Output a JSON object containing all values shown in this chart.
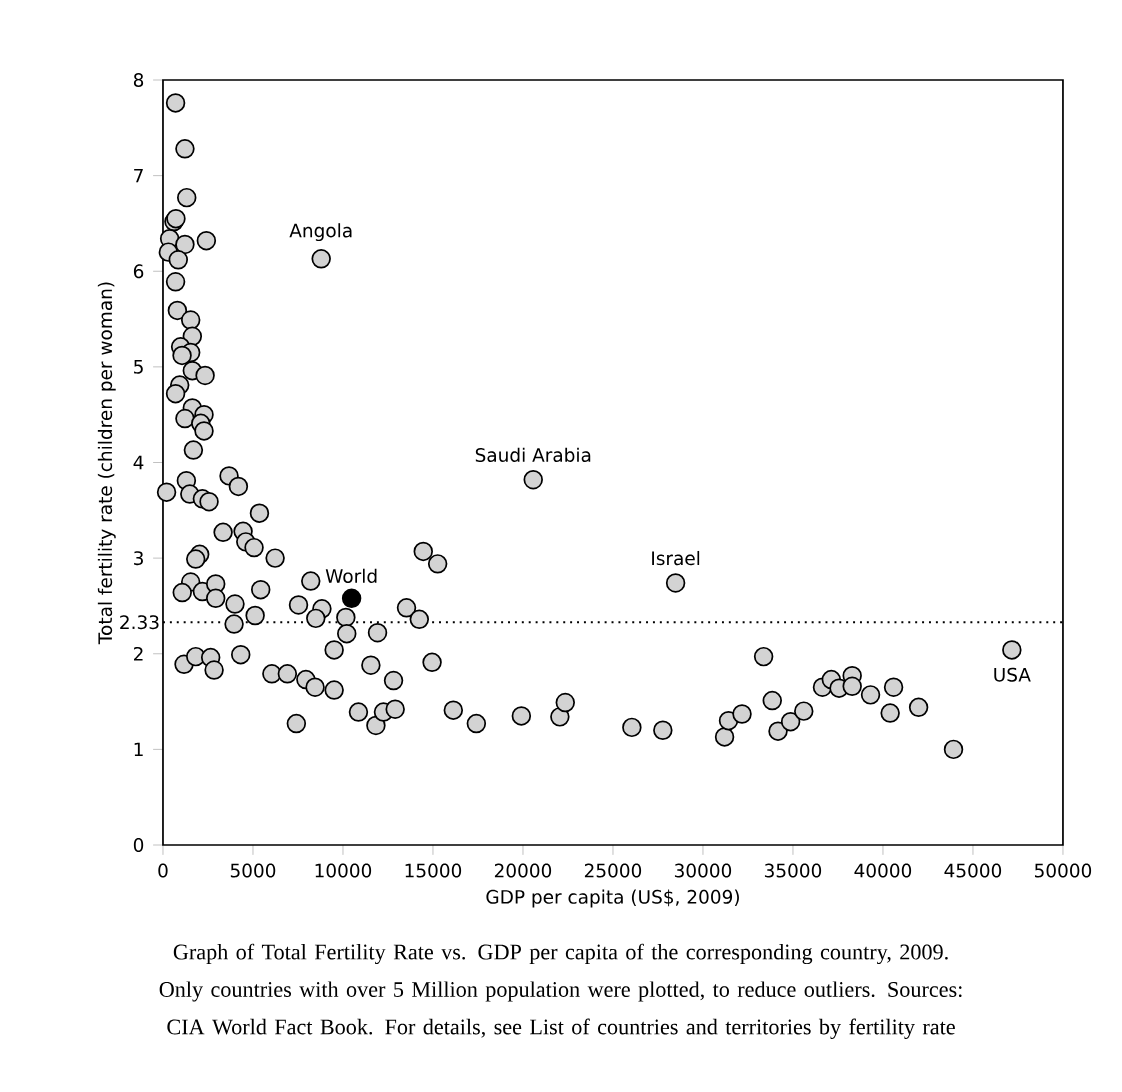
{
  "chart_data": {
    "type": "scatter",
    "xlabel": "GDP per capita (US$, 2009)",
    "ylabel": "Total fertility rate (children per woman)",
    "xlim": [
      0,
      50000
    ],
    "ylim": [
      0,
      8
    ],
    "xticks": [
      0,
      5000,
      10000,
      15000,
      20000,
      25000,
      30000,
      35000,
      40000,
      45000,
      50000
    ],
    "yticks": [
      0,
      1,
      2,
      3,
      4,
      5,
      6,
      7,
      8
    ],
    "marker": "circle",
    "series": [
      {
        "color": "#d3d3d3",
        "x": [
          700,
          1220,
          1320,
          610,
          720,
          370,
          1220,
          2410,
          300,
          850,
          700,
          800,
          1540,
          1630,
          980,
          1540,
          1060,
          1630,
          2340,
          930,
          700,
          1630,
          2280,
          1220,
          2100,
          2280,
          1690,
          200,
          1300,
          1490,
          2190,
          2560,
          3670,
          4190,
          5360,
          3340,
          4450,
          4600,
          5060,
          6230,
          2040,
          1820,
          1540,
          1070,
          2190,
          2930,
          2930,
          4000,
          3950,
          5120,
          5430,
          7530,
          8210,
          8830,
          8490,
          10160,
          10210,
          9510,
          11920,
          13530,
          14240,
          14460,
          15260,
          14950,
          1170,
          1820,
          2650,
          2840,
          4320,
          6050,
          6910,
          7940,
          8450,
          9510,
          7410,
          11550,
          12810,
          10860,
          11830,
          12250,
          12900,
          16130,
          8790,
          20570,
          28480,
          17410,
          19910,
          22050,
          22350,
          26050,
          27770,
          31200,
          31420,
          32170,
          33370,
          33850,
          34170,
          34870,
          35600,
          36640,
          37130,
          37560,
          38290,
          38290,
          39310,
          40590,
          40400,
          41980,
          43920,
          47160
        ],
        "values": [
          7.76,
          7.28,
          6.77,
          6.52,
          6.55,
          6.34,
          6.28,
          6.32,
          6.2,
          6.12,
          5.89,
          5.59,
          5.49,
          5.32,
          5.21,
          5.15,
          5.12,
          4.96,
          4.91,
          4.81,
          4.72,
          4.57,
          4.5,
          4.46,
          4.41,
          4.33,
          4.13,
          3.69,
          3.81,
          3.67,
          3.62,
          3.59,
          3.86,
          3.75,
          3.47,
          3.27,
          3.28,
          3.17,
          3.11,
          3.0,
          3.04,
          2.99,
          2.75,
          2.64,
          2.65,
          2.73,
          2.58,
          2.52,
          2.31,
          2.4,
          2.67,
          2.51,
          2.76,
          2.47,
          2.37,
          2.38,
          2.21,
          2.04,
          2.22,
          2.48,
          2.36,
          3.07,
          2.94,
          1.91,
          1.89,
          1.97,
          1.96,
          1.83,
          1.99,
          1.79,
          1.79,
          1.73,
          1.65,
          1.62,
          1.27,
          1.88,
          1.72,
          1.39,
          1.25,
          1.39,
          1.42,
          1.41,
          6.13,
          3.82,
          2.74,
          1.27,
          1.35,
          1.34,
          1.49,
          1.23,
          1.2,
          1.13,
          1.3,
          1.37,
          1.97,
          1.51,
          1.19,
          1.29,
          1.4,
          1.65,
          1.73,
          1.64,
          1.77,
          1.66,
          1.57,
          1.65,
          1.38,
          1.44,
          1.0,
          2.04
        ]
      },
      {
        "name": "World",
        "color": "#000000",
        "x": [
          10480
        ],
        "values": [
          2.58
        ]
      }
    ],
    "ref_lines": [
      {
        "axis": "y",
        "value": 2.33,
        "label": "2.33",
        "color": "#000000",
        "line_style": "dotted"
      }
    ],
    "annotations": [
      {
        "text": "Angola",
        "x": 8790,
        "y": 6.13
      },
      {
        "text": "Saudi Arabia",
        "x": 20570,
        "y": 3.82
      },
      {
        "text": "Israel",
        "x": 28480,
        "y": 2.74
      },
      {
        "text": "USA",
        "x": 47160,
        "y": 2.04
      },
      "Graph of Total Fertility Rate vs. GDP per capita of the corresponding country, 2009. Only countries with over 5 Million population were plotted, to reduce outliers. Sources: CIA World Fact Book. For details, see List of countries and territories by fertility rate"
    ]
  }
}
